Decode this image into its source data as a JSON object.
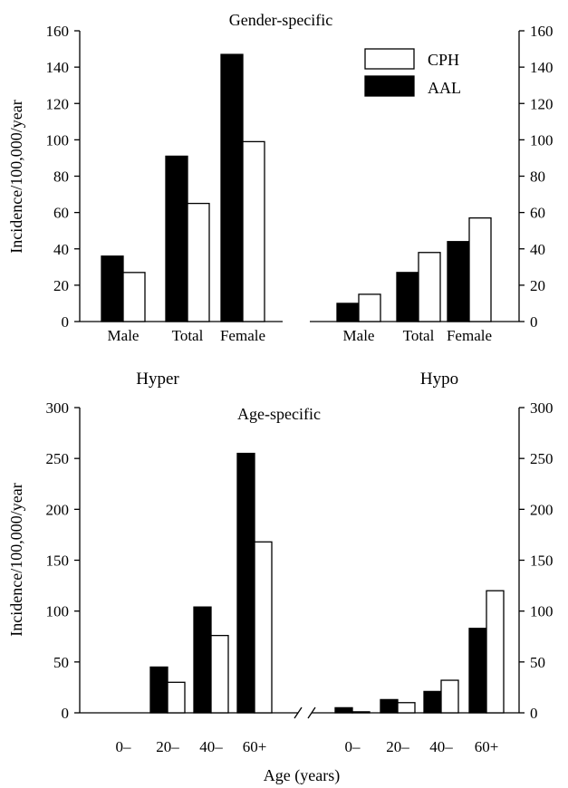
{
  "colors": {
    "CPH": "#ffffff",
    "AAL": "#000000",
    "stroke": "#000000"
  },
  "chart_data": [
    {
      "type": "bar",
      "title": "Gender-specific",
      "ylabel": "Incidence/100,000/year",
      "ylim": [
        0,
        160
      ],
      "yticks": [
        0,
        20,
        40,
        60,
        80,
        100,
        120,
        140,
        160
      ],
      "legend": {
        "position": "top-right",
        "entries": [
          "CPH",
          "AAL"
        ]
      },
      "left": {
        "label": "Hyper",
        "categories": [
          "Male",
          "Total",
          "Female"
        ],
        "series": [
          {
            "name": "AAL",
            "values": [
              36,
              91,
              147
            ]
          },
          {
            "name": "CPH",
            "values": [
              27,
              65,
              99
            ]
          }
        ]
      },
      "right": {
        "label": "Hypo",
        "categories": [
          "Male",
          "Total",
          "Female"
        ],
        "series": [
          {
            "name": "AAL",
            "values": [
              10,
              27,
              44
            ]
          },
          {
            "name": "CPH",
            "values": [
              15,
              38,
              57
            ]
          }
        ]
      }
    },
    {
      "type": "bar",
      "title": "Age-specific",
      "ylabel": "Incidence/100,000/year",
      "xlabel": "Age (years)",
      "ylim": [
        0,
        300
      ],
      "yticks": [
        0,
        50,
        100,
        150,
        200,
        250,
        300
      ],
      "left": {
        "label": "Hyper",
        "categories": [
          "0–",
          "20–",
          "40–",
          "60+"
        ],
        "series": [
          {
            "name": "AAL",
            "values": [
              0,
              45,
              104,
              255
            ]
          },
          {
            "name": "CPH",
            "values": [
              0,
              30,
              76,
              168
            ]
          }
        ]
      },
      "right": {
        "label": "Hypo",
        "categories": [
          "0–",
          "20–",
          "40–",
          "60+"
        ],
        "series": [
          {
            "name": "AAL",
            "values": [
              5,
              13,
              21,
              83
            ]
          },
          {
            "name": "CPH",
            "values": [
              1,
              10,
              32,
              120
            ]
          }
        ]
      }
    }
  ]
}
